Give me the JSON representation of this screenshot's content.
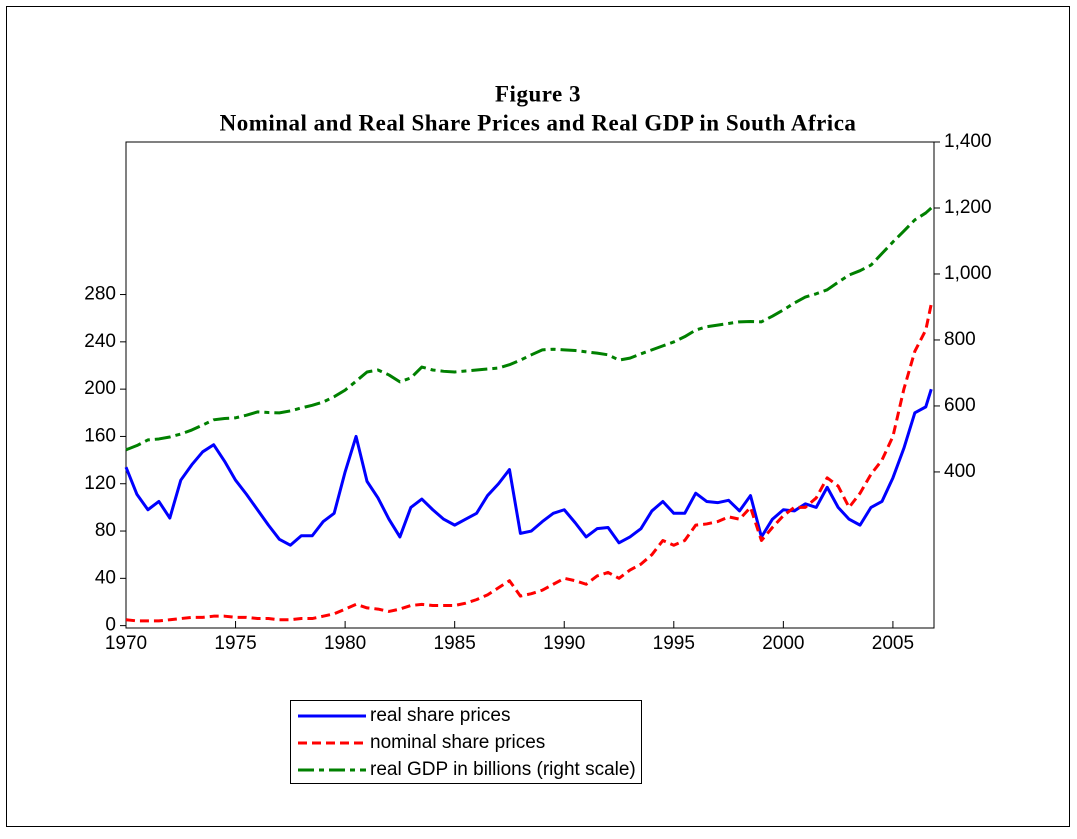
{
  "chart_data": {
    "type": "line",
    "title": "Figure 3",
    "subtitle": "Nominal and Real Share Prices and Real GDP in South Africa",
    "x": [
      1970,
      1970.5,
      1971,
      1971.5,
      1972,
      1972.5,
      1973,
      1973.5,
      1974,
      1974.5,
      1975,
      1975.5,
      1976,
      1976.5,
      1977,
      1977.5,
      1978,
      1978.5,
      1979,
      1979.5,
      1980,
      1980.5,
      1981,
      1981.5,
      1982,
      1982.5,
      1983,
      1983.5,
      1984,
      1984.5,
      1985,
      1985.5,
      1986,
      1986.5,
      1987,
      1987.5,
      1988,
      1988.5,
      1989,
      1989.5,
      1990,
      1990.5,
      1991,
      1991.5,
      1992,
      1992.5,
      1993,
      1993.5,
      1994,
      1994.5,
      1995,
      1995.5,
      1996,
      1996.5,
      1997,
      1997.5,
      1998,
      1998.5,
      1999,
      1999.5,
      2000,
      2000.5,
      2001,
      2001.5,
      2002,
      2002.5,
      2003,
      2003.5,
      2004,
      2004.5,
      2005,
      2005.5,
      2006,
      2006.5,
      2006.75
    ],
    "series": [
      {
        "name": "real share prices",
        "color": "#0000ff",
        "dash": "solid",
        "values": [
          134,
          111,
          98,
          105,
          91,
          123,
          136,
          147,
          153,
          139,
          123,
          111,
          98,
          85,
          73,
          68,
          76,
          76,
          88,
          95,
          130,
          160,
          122,
          108,
          90,
          75,
          100,
          107,
          98,
          90,
          85,
          90,
          95,
          110,
          120,
          132,
          78,
          80,
          88,
          95,
          98,
          87,
          75,
          82,
          83,
          70,
          75,
          82,
          97,
          105,
          95,
          95,
          112,
          105,
          104,
          106,
          97,
          110,
          75,
          90,
          98,
          97,
          103,
          100,
          117,
          100,
          90,
          85,
          100,
          105,
          125,
          150,
          180,
          185,
          200
        ]
      },
      {
        "name": "nominal share prices",
        "color": "#ff0000",
        "dash": "dashed",
        "values": [
          5,
          4,
          4,
          4,
          5,
          6,
          7,
          7,
          8,
          8,
          7,
          7,
          6,
          6,
          5,
          5,
          6,
          6,
          8,
          10,
          14,
          18,
          15,
          14,
          12,
          14,
          17,
          18,
          17,
          17,
          17,
          19,
          22,
          26,
          32,
          38,
          25,
          27,
          30,
          35,
          40,
          38,
          35,
          42,
          45,
          40,
          47,
          52,
          60,
          72,
          68,
          72,
          85,
          86,
          88,
          92,
          90,
          100,
          72,
          83,
          93,
          100,
          100,
          108,
          125,
          118,
          100,
          112,
          128,
          140,
          160,
          200,
          232,
          250,
          272
        ]
      },
      {
        "name": "real GDP in billions (right scale)",
        "color": "#008000",
        "dash": "dashdot",
        "axis": "y2",
        "values": [
          467,
          480,
          497,
          500,
          506,
          515,
          527,
          542,
          558,
          562,
          564,
          572,
          582,
          580,
          579,
          585,
          594,
          602,
          612,
          628,
          648,
          675,
          703,
          709,
          694,
          673,
          685,
          718,
          709,
          705,
          703,
          706,
          709,
          712,
          715,
          725,
          739,
          755,
          770,
          772,
          770,
          768,
          764,
          760,
          755,
          739,
          745,
          758,
          770,
          782,
          794,
          810,
          830,
          840,
          845,
          850,
          855,
          856,
          855,
          872,
          891,
          912,
          930,
          940,
          952,
          975,
          997,
          1010,
          1027,
          1062,
          1097,
          1130,
          1164,
          1185,
          1200
        ]
      }
    ],
    "xlim": [
      1970,
      2006.875
    ],
    "xticks": [
      1970,
      1975,
      1980,
      1985,
      1990,
      1995,
      2000,
      2005
    ],
    "ylim": [
      -2,
      409
    ],
    "yticks": [
      0,
      40,
      80,
      120,
      160,
      200,
      240,
      280
    ],
    "y2lim": [
      -73,
      1400
    ],
    "y2ticks": [
      400,
      600,
      800,
      {
        "value": 1000,
        "label": "1,000"
      },
      {
        "value": 1200,
        "label": "1,200"
      },
      {
        "value": 1400,
        "label": "1,400"
      }
    ],
    "legend_position": "below",
    "grid": false
  }
}
